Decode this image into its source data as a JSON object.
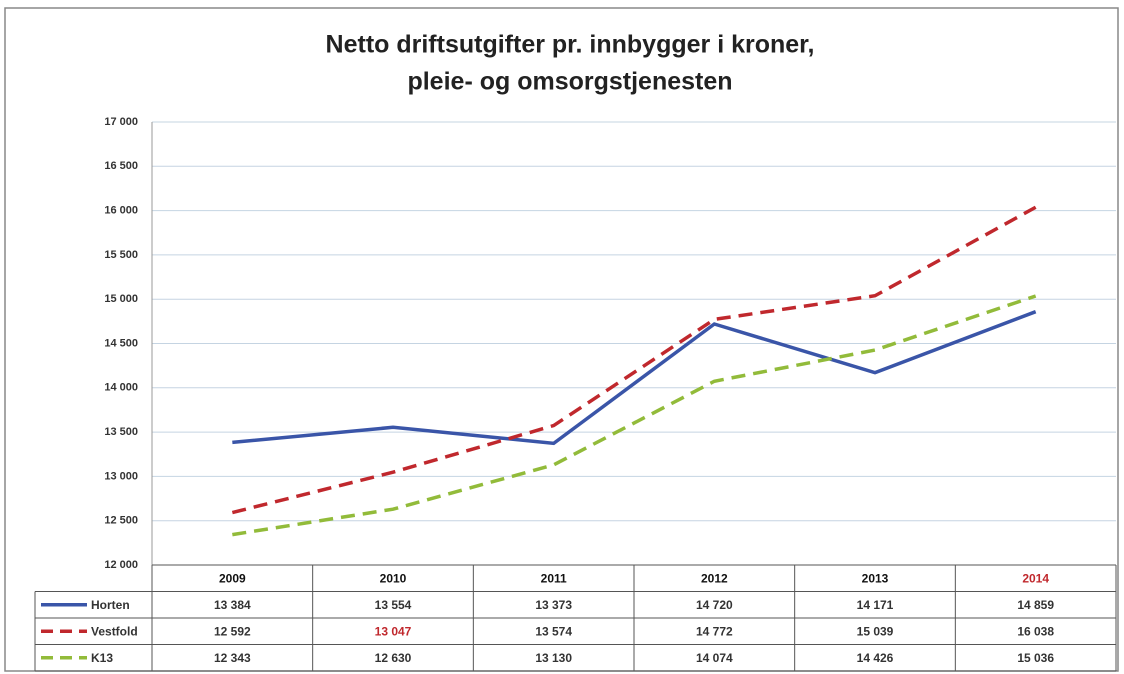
{
  "chart_data": {
    "type": "line",
    "title": "Netto driftsutgifter pr. innbygger i kroner,",
    "subtitle": "pleie- og omsorgstjenesten",
    "categories": [
      "2009",
      "2010",
      "2011",
      "2012",
      "2013",
      "2014"
    ],
    "series": [
      {
        "name": "Horten",
        "color": "#3a55a8",
        "dash": "solid",
        "values": [
          13384,
          13554,
          13373,
          14720,
          14171,
          14859
        ],
        "value_labels": [
          "13 384",
          "13 554",
          "13 373",
          "14 720",
          "14 171",
          "14 859"
        ]
      },
      {
        "name": "Vestfold",
        "color": "#c0282d",
        "dash": "dashed",
        "values": [
          12592,
          13047,
          13574,
          14772,
          15039,
          16038
        ],
        "value_labels": [
          "12 592",
          "13 047",
          "13 574",
          "14 772",
          "15 039",
          "16 038"
        ]
      },
      {
        "name": "K13",
        "color": "#92bb3a",
        "dash": "dashed",
        "values": [
          12343,
          12630,
          13130,
          14074,
          14426,
          15036
        ],
        "value_labels": [
          "12 343",
          "12 630",
          "13 130",
          "14 074",
          "14 426",
          "15 036"
        ]
      }
    ],
    "ylim": [
      12000,
      17000
    ],
    "yticks": [
      {
        "value": 12000,
        "label": "12 000"
      },
      {
        "value": 12500,
        "label": "12 500"
      },
      {
        "value": 13000,
        "label": "13 000"
      },
      {
        "value": 13500,
        "label": "13 500"
      },
      {
        "value": 14000,
        "label": "14 000"
      },
      {
        "value": 14500,
        "label": "14 500"
      },
      {
        "value": 15000,
        "label": "15 000"
      },
      {
        "value": 15500,
        "label": "15 500"
      },
      {
        "value": 16000,
        "label": "16 000"
      },
      {
        "value": 16500,
        "label": "16 500"
      },
      {
        "value": 17000,
        "label": "17 000"
      }
    ],
    "grid": true
  }
}
